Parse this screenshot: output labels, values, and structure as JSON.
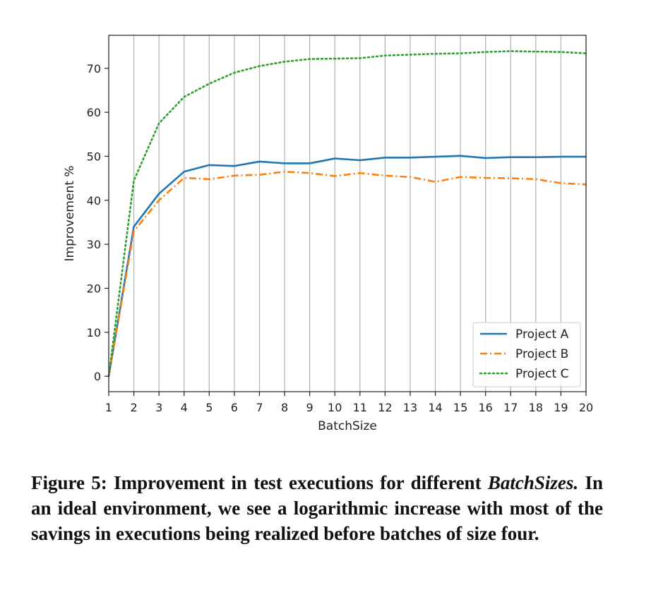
{
  "chart_data": {
    "type": "line",
    "xlabel": "BatchSize",
    "ylabel": "Improvement %",
    "x": [
      1,
      2,
      3,
      4,
      5,
      6,
      7,
      8,
      9,
      10,
      11,
      12,
      13,
      14,
      15,
      16,
      17,
      18,
      19,
      20
    ],
    "xlim": [
      1,
      20
    ],
    "ylim": [
      -3.5,
      77.5
    ],
    "x_ticks": [
      1,
      2,
      3,
      4,
      5,
      6,
      7,
      8,
      9,
      10,
      11,
      12,
      13,
      14,
      15,
      16,
      17,
      18,
      19,
      20
    ],
    "y_ticks": [
      0,
      10,
      20,
      30,
      40,
      50,
      60,
      70
    ],
    "grid": "vertical",
    "legend_position": "lower-right",
    "series": [
      {
        "name": "Project A",
        "color": "#1f77b4",
        "style": "solid",
        "values": [
          0,
          34,
          41.5,
          46.5,
          48,
          47.8,
          48.8,
          48.4,
          48.4,
          49.5,
          49.1,
          49.7,
          49.7,
          49.9,
          50.1,
          49.6,
          49.8,
          49.8,
          49.9,
          49.9
        ]
      },
      {
        "name": "Project B",
        "color": "#ff7f0e",
        "style": "dashdot",
        "values": [
          0,
          33,
          40,
          45.1,
          44.8,
          45.6,
          45.8,
          46.5,
          46.2,
          45.5,
          46.2,
          45.6,
          45.3,
          44.2,
          45.3,
          45.1,
          45,
          44.8,
          43.9,
          43.6
        ]
      },
      {
        "name": "Project C",
        "color": "#2ca02c",
        "style": "dotted",
        "values": [
          0,
          44.5,
          57.5,
          63.5,
          66.5,
          69,
          70.5,
          71.5,
          72.1,
          72.2,
          72.3,
          72.9,
          73.1,
          73.3,
          73.4,
          73.7,
          73.9,
          73.8,
          73.7,
          73.4
        ]
      }
    ]
  },
  "caption": {
    "lead": "Figure 5: Improvement in test executions for different ",
    "emph": "BatchSizes.",
    "rest": " In an ideal environment, we see a logarithmic increase with most of the savings in executions being realized before batches of size four."
  }
}
